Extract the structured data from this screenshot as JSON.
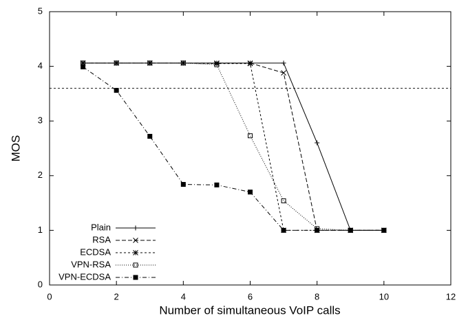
{
  "chart_data": {
    "type": "line",
    "x_label": "Number of simultaneous VoIP calls",
    "y_label": "MOS",
    "x": [
      1,
      2,
      3,
      4,
      5,
      6,
      7,
      8,
      9,
      10
    ],
    "series": [
      {
        "name": "Plain",
        "color": "#000000",
        "dash": "none",
        "marker": "plus",
        "values": [
          4.06,
          4.06,
          4.06,
          4.06,
          4.06,
          4.06,
          4.06,
          2.6,
          1.0,
          1.0
        ]
      },
      {
        "name": "RSA",
        "color": "#000000",
        "dash": "6,3",
        "marker": "cross",
        "values": [
          4.06,
          4.06,
          4.06,
          4.06,
          4.06,
          4.06,
          3.88,
          1.0,
          1.0,
          1.0
        ]
      },
      {
        "name": "ECDSA",
        "color": "#000000",
        "dash": "3,3",
        "marker": "star",
        "values": [
          4.06,
          4.06,
          4.06,
          4.06,
          4.05,
          4.05,
          1.0,
          1.0,
          1.0,
          1.0
        ]
      },
      {
        "name": "VPN-RSA",
        "color": "#000000",
        "dash": "1,2",
        "marker": "square",
        "values": [
          4.06,
          4.06,
          4.06,
          4.06,
          4.03,
          2.73,
          1.54,
          1.03,
          1.0,
          1.0
        ]
      },
      {
        "name": "VPN-ECDSA",
        "color": "#000000",
        "dash": "6,3,1,3",
        "marker": "filled-square",
        "values": [
          3.99,
          3.56,
          2.72,
          1.84,
          1.83,
          1.7,
          1.0,
          1.0,
          1.0,
          1.0
        ]
      }
    ],
    "reference_line": 3.6,
    "xlim": [
      0,
      12
    ],
    "xticks": [
      0,
      2,
      4,
      6,
      8,
      10,
      12
    ],
    "ylim": [
      0,
      5
    ],
    "yticks": [
      0,
      1,
      2,
      3,
      4,
      5
    ],
    "grid": false,
    "legend": "lower left"
  }
}
